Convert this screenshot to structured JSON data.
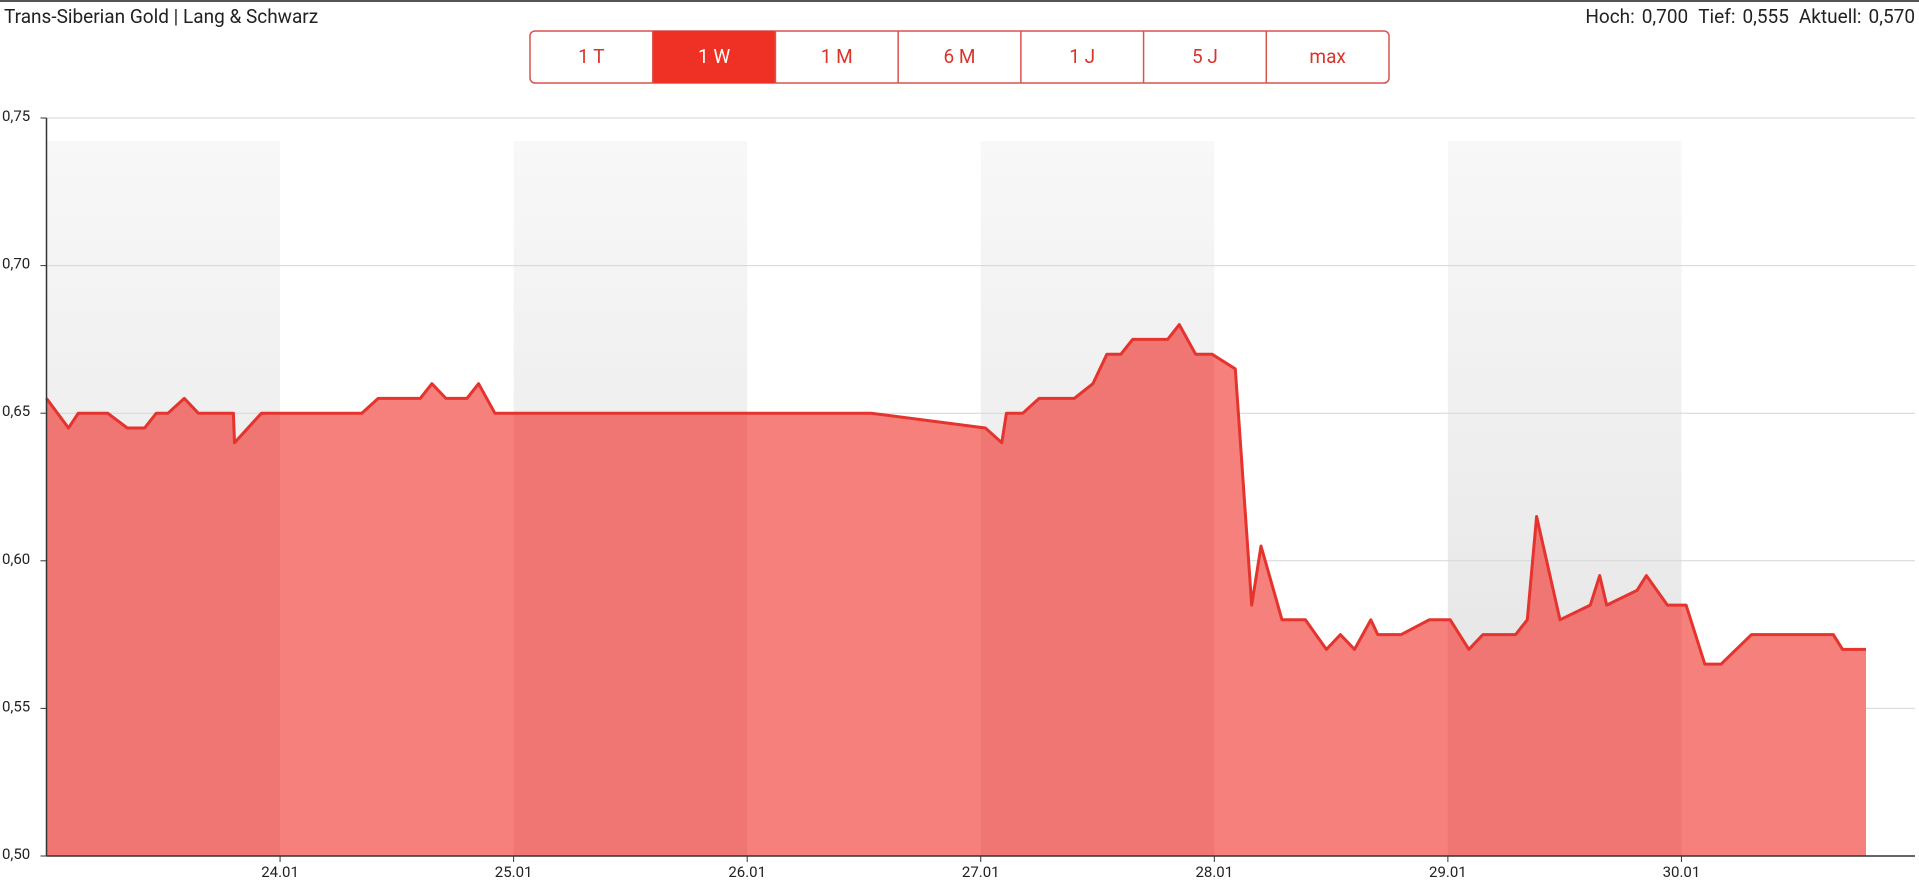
{
  "header": {
    "title": "Trans-Siberian Gold | Lang & Schwarz",
    "stats": [
      {
        "label": "Hoch:",
        "value": "0,700"
      },
      {
        "label": "Tief:",
        "value": "0,555"
      },
      {
        "label": "Aktuell:",
        "value": "0,570"
      }
    ],
    "buttons": [
      "1 T",
      "1 W",
      "1 M",
      "6 M",
      "1 J",
      "5 J",
      "max"
    ],
    "active_button": 1
  },
  "chart_data": {
    "type": "area",
    "x": [
      23.0,
      23.094,
      23.136,
      23.262,
      23.346,
      23.42,
      23.47,
      23.52,
      23.59,
      23.65,
      23.8,
      23.805,
      23.92,
      24.35,
      24.42,
      24.6,
      24.65,
      24.71,
      24.8,
      24.85,
      24.92,
      26.53,
      27.02,
      27.09,
      27.11,
      27.18,
      27.25,
      27.4,
      27.48,
      27.54,
      27.6,
      27.65,
      27.8,
      27.85,
      27.92,
      27.99,
      28.09,
      28.16,
      28.2,
      28.29,
      28.39,
      28.48,
      28.54,
      28.6,
      28.67,
      28.7,
      28.8,
      28.92,
      29.01,
      29.09,
      29.15,
      29.29,
      29.34,
      29.38,
      29.48,
      29.61,
      29.65,
      29.68,
      29.81,
      29.85,
      29.94,
      30.02,
      30.1,
      30.17,
      30.3,
      30.65,
      30.69,
      30.79
    ],
    "series": [
      {
        "color": "#e5332e",
        "fill": "#f6807b",
        "values": [
          0.655,
          0.645,
          0.65,
          0.65,
          0.645,
          0.645,
          0.65,
          0.65,
          0.655,
          0.65,
          0.65,
          0.64,
          0.65,
          0.65,
          0.655,
          0.655,
          0.66,
          0.655,
          0.655,
          0.66,
          0.65,
          0.65,
          0.645,
          0.64,
          0.65,
          0.65,
          0.655,
          0.655,
          0.66,
          0.67,
          0.67,
          0.675,
          0.675,
          0.68,
          0.67,
          0.67,
          0.665,
          0.585,
          0.605,
          0.58,
          0.58,
          0.57,
          0.575,
          0.57,
          0.58,
          0.575,
          0.575,
          0.58,
          0.58,
          0.57,
          0.575,
          0.575,
          0.58,
          0.615,
          0.58,
          0.585,
          0.595,
          0.585,
          0.59,
          0.595,
          0.585,
          0.585,
          0.565,
          0.565,
          0.575,
          0.575,
          0.57,
          0.57
        ]
      }
    ],
    "xlim": [
      23,
      31
    ],
    "xticks": [
      {
        "value": 24,
        "label": "24.01"
      },
      {
        "value": 25,
        "label": "25.01"
      },
      {
        "value": 26,
        "label": "26.01"
      },
      {
        "value": 27,
        "label": "27.01"
      },
      {
        "value": 28,
        "label": "28.01"
      },
      {
        "value": 29,
        "label": "29.01"
      },
      {
        "value": 30,
        "label": "30.01"
      }
    ],
    "ylim": [
      0.5,
      0.75
    ],
    "yticks": [
      {
        "value": 0.5,
        "label": "0,50"
      },
      {
        "value": 0.55,
        "label": "0,55"
      },
      {
        "value": 0.6,
        "label": "0,60"
      },
      {
        "value": 0.65,
        "label": "0,65"
      },
      {
        "value": 0.7,
        "label": "0,70"
      },
      {
        "value": 0.75,
        "label": "0,75"
      }
    ],
    "grid": true
  }
}
